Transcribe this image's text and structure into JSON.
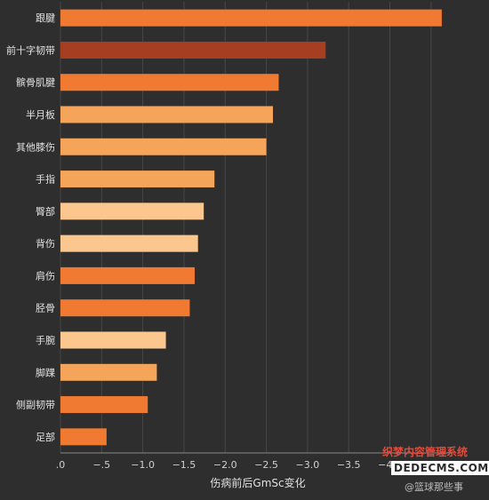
{
  "chart_data": {
    "type": "bar",
    "orientation": "horizontal",
    "categories": [
      "跟腱",
      "前十字韧带",
      "髌骨肌腱",
      "半月板",
      "其他膝伤",
      "手指",
      "臀部",
      "背伤",
      "肩伤",
      "胫骨",
      "手腕",
      "脚踝",
      "侧副韧带",
      "足部"
    ],
    "values": [
      -4.63,
      -3.22,
      -2.65,
      -2.58,
      -2.5,
      -1.87,
      -1.74,
      -1.67,
      -1.63,
      -1.57,
      -1.28,
      -1.17,
      -1.06,
      -0.56
    ],
    "colors": [
      "#f07a32",
      "#a63e22",
      "#f07a32",
      "#f5a55a",
      "#f5a55a",
      "#f5a55a",
      "#fbc78e",
      "#fbc78e",
      "#f07a32",
      "#f07a32",
      "#fbc78e",
      "#f5a55a",
      "#f07a32",
      "#f07a32"
    ],
    "xlabel": "伤病前后GmSc变化",
    "xlim": [
      0,
      -4.75
    ],
    "xticks": [
      0,
      -0.5,
      -1.0,
      -1.5,
      -2.0,
      -2.5,
      -3.0,
      -3.5,
      -4.0,
      -4.5
    ],
    "xtick_labels": [
      ".0",
      "−.5",
      "−1.0",
      "−1.5",
      "−2.0",
      "−2.5",
      "−3.0",
      "−3.5",
      "−4.0",
      "−4.5"
    ],
    "grid": true
  },
  "watermark": {
    "line1": "织梦内容管理系统",
    "line2": "DEDECMS.COM",
    "line3": "@篮球那些事"
  }
}
